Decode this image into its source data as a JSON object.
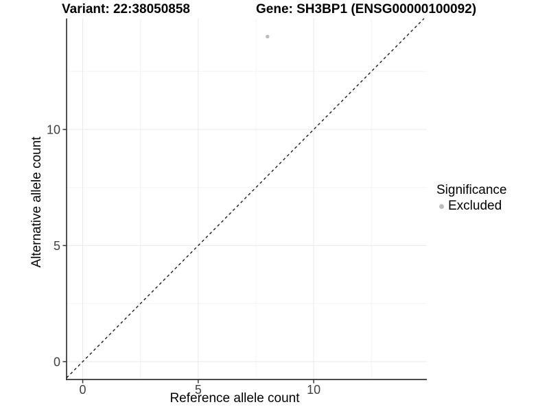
{
  "header": {
    "title_left": "Variant: 22:38050858",
    "title_right": "Gene: SH3BP1 (ENSG00000100092)"
  },
  "legend": {
    "title": "Significance",
    "items": [
      {
        "label": "Excluded",
        "color": "#bcbcbc"
      }
    ]
  },
  "chart_data": {
    "type": "scatter",
    "title": "Variant: 22:38050858 / Gene: SH3BP1 (ENSG00000100092)",
    "xlabel": "Reference allele count",
    "ylabel": "Alternative allele count",
    "xlim": [
      -0.7,
      14.9
    ],
    "ylim": [
      -0.77,
      14.78
    ],
    "x_ticks": [
      0,
      5,
      10
    ],
    "y_ticks": [
      0,
      5,
      10
    ],
    "x_minor_ticks": [
      2.5,
      7.5,
      12.5
    ],
    "y_minor_ticks": [
      2.5,
      7.5,
      12.5
    ],
    "grid": "major and minor gridlines, light grey on white panel",
    "legend_position": "right",
    "series": [
      {
        "name": "Excluded",
        "color": "#bcbcbc",
        "points": [
          {
            "x": 8,
            "y": 14
          }
        ]
      }
    ],
    "annotations": [
      {
        "type": "reference-line",
        "equation": "y = x",
        "style": "dashed",
        "color": "#1a1a1a"
      }
    ]
  },
  "colors": {
    "background": "#ffffff",
    "axis_line": "#333333",
    "tick_mark": "#333333",
    "tick_label": "#404040",
    "grid_major": "#e9e9e9",
    "grid_minor": "#f3f3f3",
    "point": "#bcbcbc",
    "dashed_line": "#1a1a1a"
  }
}
